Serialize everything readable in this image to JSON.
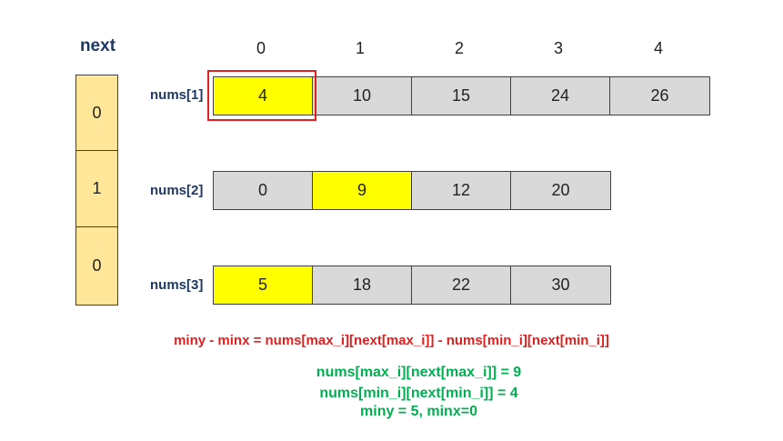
{
  "next": {
    "title": "next",
    "values": [
      "0",
      "1",
      "0"
    ]
  },
  "column_indices": [
    "0",
    "1",
    "2",
    "3",
    "4"
  ],
  "rows": [
    {
      "label": "nums[1]",
      "cells": [
        "4",
        "10",
        "15",
        "24",
        "26"
      ],
      "highlight_index": 0
    },
    {
      "label": "nums[2]",
      "cells": [
        "0",
        "9",
        "12",
        "20"
      ],
      "highlight_index": 1
    },
    {
      "label": "nums[3]",
      "cells": [
        "5",
        "18",
        "22",
        "30"
      ],
      "highlight_index": 0
    }
  ],
  "formula": "miny - minx = nums[max_i][next[max_i]] - nums[min_i][next[min_i]]",
  "notes": [
    "nums[max_i][next[max_i]] = 9",
    "nums[min_i][next[min_i]] = 4",
    "miny = 5, minx=0"
  ],
  "colors": {
    "highlight": "#ffff00",
    "cell": "#d9d9d9",
    "next_cell": "#ffe699",
    "selection_border": "#e02020",
    "label": "#1f3864",
    "formula": "#e02020",
    "notes": "#00b050"
  }
}
